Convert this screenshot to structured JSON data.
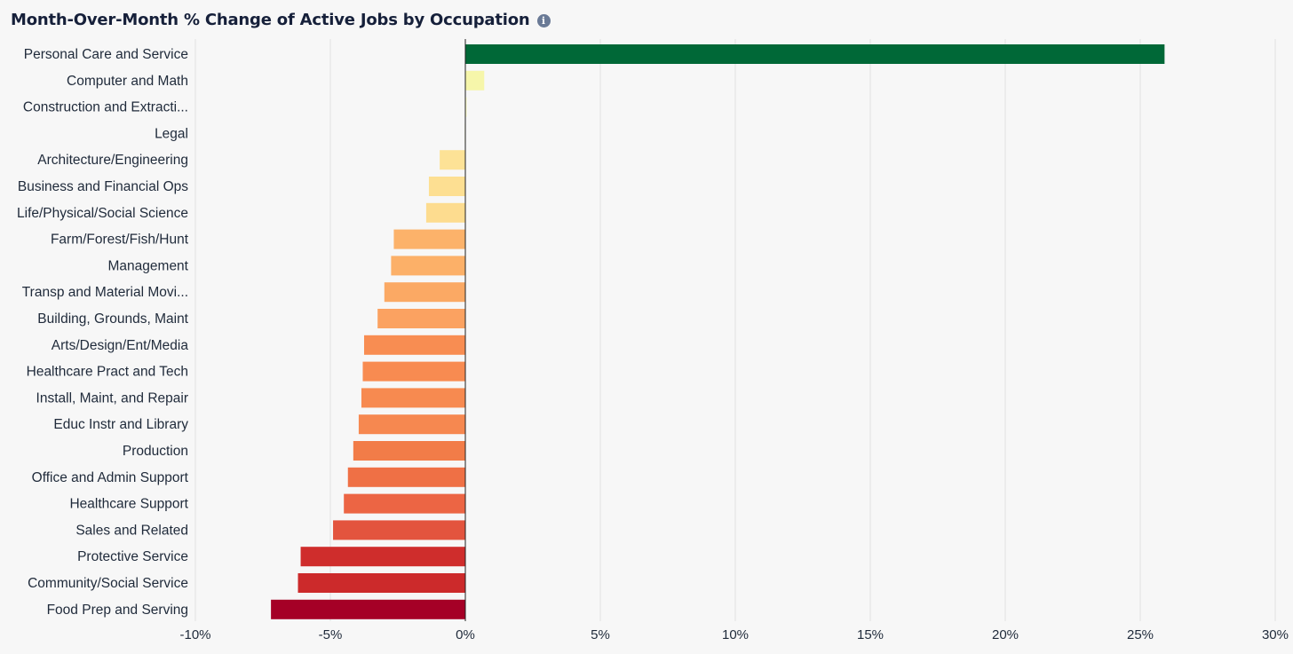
{
  "title": "Month-Over-Month % Change of Active Jobs by Occupation",
  "info_icon": "info-icon",
  "chart_data": {
    "type": "bar",
    "orientation": "horizontal",
    "title": "Month-Over-Month % Change of Active Jobs by Occupation",
    "xlabel": "",
    "ylabel": "",
    "xlim": [
      -10,
      30
    ],
    "x_ticks": [
      -10,
      -5,
      0,
      5,
      10,
      15,
      20,
      25,
      30
    ],
    "x_tick_labels": [
      "-10%",
      "-5%",
      "0%",
      "5%",
      "10%",
      "15%",
      "20%",
      "25%",
      "30%"
    ],
    "grid": true,
    "legend": "none",
    "categories": [
      "Personal Care and Service",
      "Computer and Math",
      "Construction and Extracti...",
      "Legal",
      "Architecture/Engineering",
      "Business and Financial Ops",
      "Life/Physical/Social Science",
      "Farm/Forest/Fish/Hunt",
      "Management",
      "Transp and Material Movi...",
      "Building, Grounds, Maint",
      "Arts/Design/Ent/Media",
      "Healthcare Pract and Tech",
      "Install, Maint, and Repair",
      "Educ Instr and Library",
      "Production",
      "Office and Admin Support",
      "Healthcare Support",
      "Sales and Related",
      "Protective Service",
      "Community/Social Service",
      "Food Prep and Serving"
    ],
    "values": [
      25.9,
      0.7,
      0.05,
      -0.02,
      -0.95,
      -1.35,
      -1.45,
      -2.65,
      -2.75,
      -3.0,
      -3.25,
      -3.75,
      -3.8,
      -3.85,
      -3.95,
      -4.15,
      -4.35,
      -4.5,
      -4.9,
      -6.1,
      -6.2,
      -7.2
    ],
    "colors": [
      "#006837",
      "#f6f6aa",
      "#fdfdc6",
      "#f9ef9f",
      "#fde296",
      "#fddf92",
      "#fddc8f",
      "#fcb26a",
      "#fcb068",
      "#fba964",
      "#fba261",
      "#f88d52",
      "#f88b51",
      "#f78a50",
      "#f68850",
      "#f27c48",
      "#ef7045",
      "#ec6544",
      "#e3543e",
      "#cf2d2c",
      "#cc2a2b",
      "#a50026"
    ]
  }
}
